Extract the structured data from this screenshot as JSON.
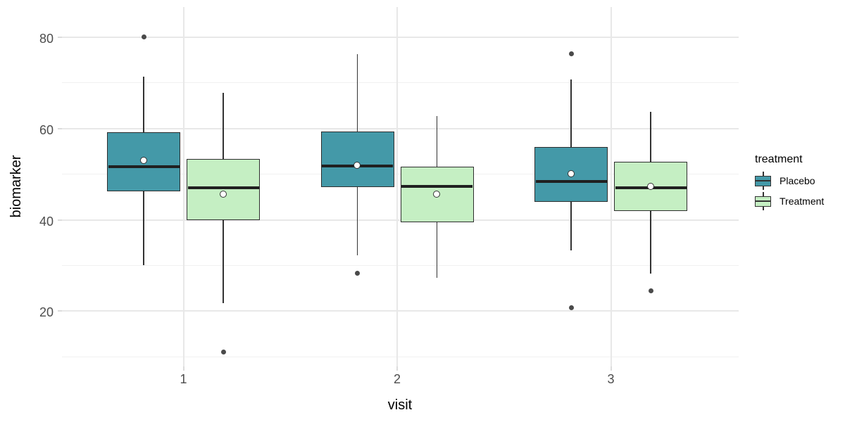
{
  "chart_data": {
    "type": "boxplot",
    "title": "",
    "xlabel": "visit",
    "ylabel": "biomarker",
    "categories": [
      "1",
      "2",
      "3"
    ],
    "y_axis": {
      "ticks": [
        {
          "value": 20,
          "label": "20"
        },
        {
          "value": 40,
          "label": "40"
        },
        {
          "value": 60,
          "label": "60"
        },
        {
          "value": 80,
          "label": "80"
        }
      ],
      "minor_ticks": [
        10,
        30,
        50,
        70
      ],
      "ylim": [
        7.9,
        86.6
      ],
      "grid": "on"
    },
    "legend": {
      "title": "treatment",
      "position": "right",
      "entries": [
        {
          "name": "Placebo",
          "fill": "#4499A8"
        },
        {
          "name": "Treatment",
          "fill": "#C5EFC3"
        }
      ]
    },
    "colors": {
      "placebo_fill": "#4499A8",
      "treatment_fill": "#C5EFC3",
      "box_border": "#2e2e2e",
      "median": "#202020",
      "outlier": "#4a4a4a",
      "mean_fill": "#ffffff",
      "grid_major": "#e8e8e8",
      "grid_minor": "#f1f1f1",
      "axis_text": "#4d4d4d"
    },
    "series": [
      {
        "name": "Placebo",
        "fill": "#4499A8",
        "boxes": [
          {
            "category": "1",
            "lower_whisker": 30.0,
            "q1": 46.2,
            "median": 51.7,
            "mean": 52.9,
            "q3": 59.2,
            "upper_whisker": 71.3,
            "outliers": [
              80.0
            ]
          },
          {
            "category": "2",
            "lower_whisker": 32.3,
            "q1": 47.1,
            "median": 51.8,
            "mean": 51.8,
            "q3": 59.4,
            "upper_whisker": 76.3,
            "outliers": [
              28.3
            ]
          },
          {
            "category": "3",
            "lower_whisker": 33.3,
            "q1": 44.0,
            "median": 48.4,
            "mean": 50.0,
            "q3": 55.9,
            "upper_whisker": 70.8,
            "outliers": [
              76.3,
              20.7
            ]
          }
        ]
      },
      {
        "name": "Treatment",
        "fill": "#C5EFC3",
        "boxes": [
          {
            "category": "1",
            "lower_whisker": 21.8,
            "q1": 39.9,
            "median": 47.0,
            "mean": 45.6,
            "q3": 53.3,
            "upper_whisker": 67.8,
            "outliers": [
              11.1
            ]
          },
          {
            "category": "2",
            "lower_whisker": 27.3,
            "q1": 39.5,
            "median": 47.3,
            "mean": 45.6,
            "q3": 51.6,
            "upper_whisker": 62.8,
            "outliers": []
          },
          {
            "category": "3",
            "lower_whisker": 28.3,
            "q1": 42.0,
            "median": 47.0,
            "mean": 47.2,
            "q3": 52.7,
            "upper_whisker": 63.7,
            "outliers": [
              24.4
            ]
          }
        ]
      }
    ]
  }
}
